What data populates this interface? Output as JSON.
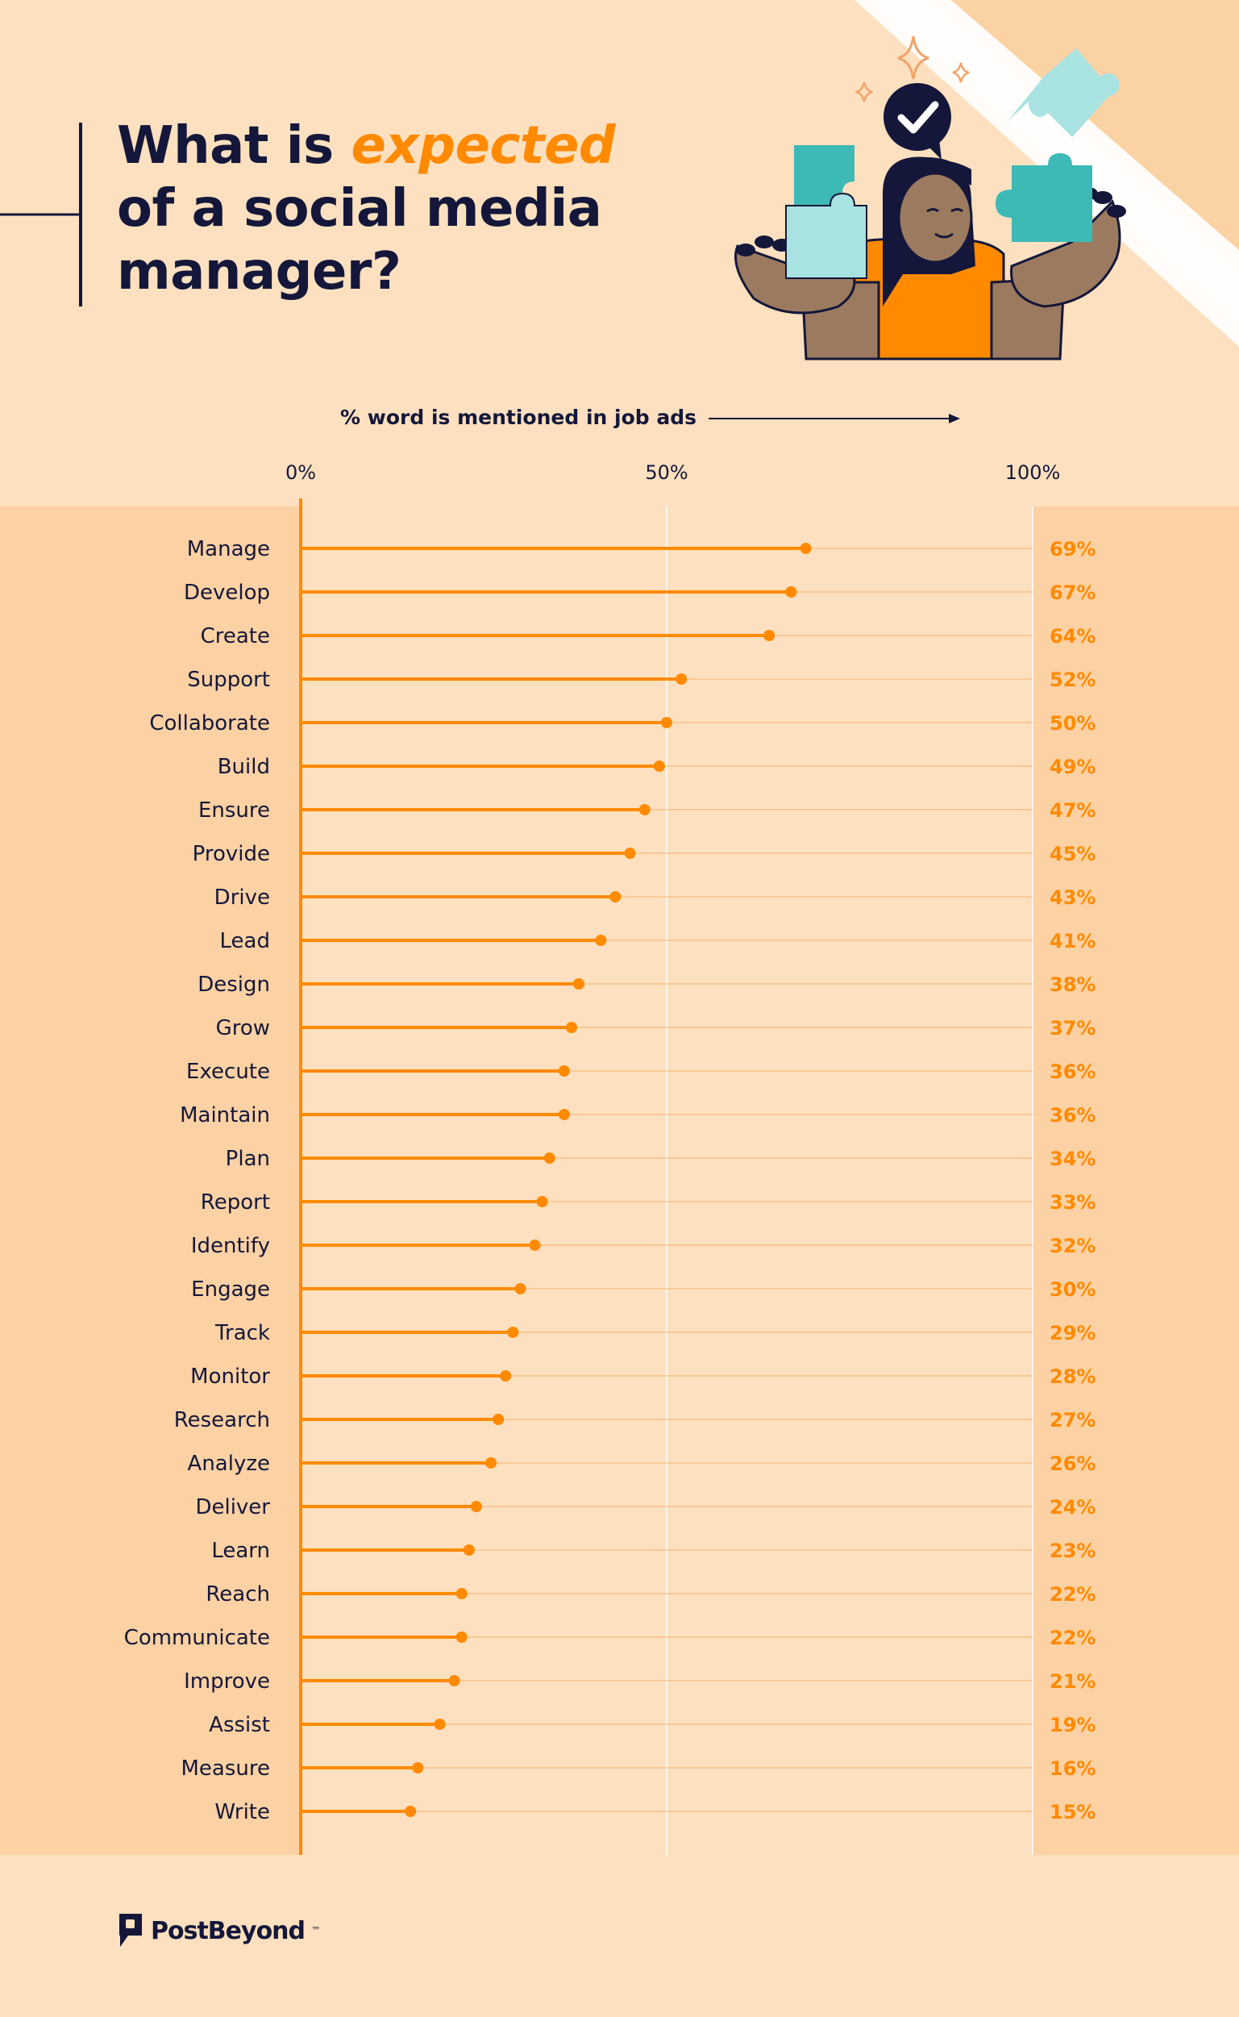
{
  "title": {
    "part1": "What is ",
    "accent": "expected",
    "part2": "of a social media",
    "part3": "manager?"
  },
  "axis_caption": "% word is mentioned in job ads",
  "colors": {
    "accent": "#ff8a00",
    "navy": "#14173a",
    "background": "#fde0bf",
    "band": "#fcd1a3",
    "teal": "#3dbab6",
    "light_teal": "#a8e3e2"
  },
  "logo": {
    "text": "PostBeyond",
    "tm": "™"
  },
  "chart_data": {
    "type": "lollipop",
    "xlim": [
      0,
      100
    ],
    "ticks": [
      {
        "value": 0,
        "label": "0%"
      },
      {
        "value": 50,
        "label": "50%"
      },
      {
        "value": 100,
        "label": "100%"
      }
    ],
    "categories": [
      "Manage",
      "Develop",
      "Create",
      "Support",
      "Collaborate",
      "Build",
      "Ensure",
      "Provide",
      "Drive",
      "Lead",
      "Design",
      "Grow",
      "Execute",
      "Maintain",
      "Plan",
      "Report",
      "Identify",
      "Engage",
      "Track",
      "Monitor",
      "Research",
      "Analyze",
      "Deliver",
      "Learn",
      "Reach",
      "Communicate",
      "Improve",
      "Assist",
      "Measure",
      "Write"
    ],
    "values": [
      69,
      67,
      64,
      52,
      50,
      49,
      47,
      45,
      43,
      41,
      38,
      37,
      36,
      36,
      34,
      33,
      32,
      30,
      29,
      28,
      27,
      26,
      24,
      23,
      22,
      22,
      21,
      19,
      16,
      15
    ],
    "labels": [
      "69%",
      "67%",
      "64%",
      "52%",
      "50%",
      "49%",
      "47%",
      "45%",
      "43%",
      "41%",
      "38%",
      "37%",
      "36%",
      "36%",
      "34%",
      "33%",
      "32%",
      "30%",
      "29%",
      "28%",
      "27%",
      "26%",
      "24%",
      "23%",
      "22%",
      "22%",
      "21%",
      "19%",
      "16%",
      "15%"
    ]
  }
}
